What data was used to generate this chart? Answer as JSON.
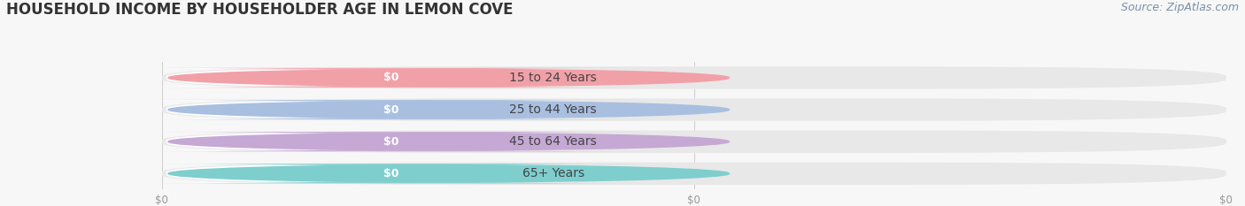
{
  "title": "HOUSEHOLD INCOME BY HOUSEHOLDER AGE IN LEMON COVE",
  "source": "Source: ZipAtlas.com",
  "categories": [
    "15 to 24 Years",
    "25 to 44 Years",
    "45 to 64 Years",
    "65+ Years"
  ],
  "values": [
    0,
    0,
    0,
    0
  ],
  "bar_colors": [
    "#f2a0a8",
    "#a8bfe0",
    "#c5a8d4",
    "#7ecece"
  ],
  "bar_track_color": "#e8e8e8",
  "label_pill_color": "#ffffff",
  "background_color": "#f7f7f7",
  "title_fontsize": 12,
  "source_fontsize": 9,
  "label_fontsize": 10,
  "value_label": "$0",
  "xtick_labels": [
    "$0",
    "$0",
    "$0"
  ]
}
